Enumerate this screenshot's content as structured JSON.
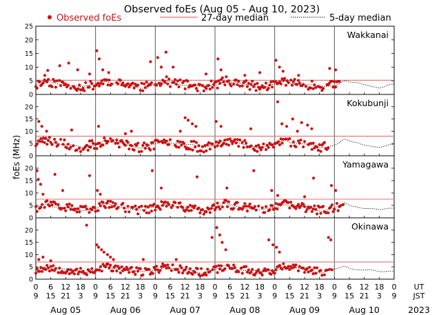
{
  "chart_data": {
    "type": "scatter",
    "title": "Observed foEs (Aug 05 - Aug 10, 2023)",
    "ylabel": "foEs (MHz)",
    "ylim": [
      0,
      25
    ],
    "yticks": [
      0,
      5,
      10,
      15,
      20,
      25
    ],
    "yticks_short": [
      0,
      5,
      10,
      15,
      20
    ],
    "xlim_days": [
      0,
      6
    ],
    "legend": {
      "observed": "Observed foEs",
      "median27": "27-day median",
      "median5": "5-day median"
    },
    "colors": {
      "observed": "#cc1111",
      "median27": "#e07070",
      "median5": "#000000",
      "daylines": "#555555"
    },
    "hour_ticks": [
      "0",
      "6",
      "12",
      "18",
      "0"
    ],
    "jst_ticks": [
      "9",
      "15",
      "21",
      "3",
      "9"
    ],
    "axis_labels": {
      "ut": "UT",
      "jst": "JST",
      "year": "2023"
    },
    "days": [
      "Aug 05",
      "Aug 06",
      "Aug 07",
      "Aug 08",
      "Aug 09",
      "Aug 10"
    ],
    "stations": [
      {
        "name": "Wakkanai",
        "median27": 5.2,
        "base": 3.5,
        "amp": 1.6,
        "noise": 1.6,
        "seed": 11,
        "data_end_day": 5.1,
        "spikes": [
          [
            0.2,
            8.8
          ],
          [
            0.4,
            10.5
          ],
          [
            0.55,
            11.5
          ],
          [
            0.7,
            9
          ],
          [
            0.9,
            7.5
          ],
          [
            1.02,
            16
          ],
          [
            1.06,
            13
          ],
          [
            1.12,
            9
          ],
          [
            1.22,
            8
          ],
          [
            2.04,
            13.5
          ],
          [
            2.1,
            10
          ],
          [
            2.18,
            15.5
          ],
          [
            2.3,
            10
          ],
          [
            1.92,
            12
          ],
          [
            2.85,
            7.5
          ],
          [
            3.05,
            13
          ],
          [
            3.1,
            9
          ],
          [
            3.5,
            7
          ],
          [
            4.02,
            12.5
          ],
          [
            4.08,
            10
          ],
          [
            4.14,
            8.5
          ],
          [
            4.4,
            7
          ],
          [
            4.92,
            9.5
          ],
          [
            5.02,
            9
          ],
          [
            3.75,
            8
          ],
          [
            0.15,
            7
          ]
        ]
      },
      {
        "name": "Kokubunji",
        "median27": 8,
        "base": 4.5,
        "amp": 2.2,
        "noise": 1.9,
        "seed": 23,
        "data_end_day": 4.92,
        "spikes": [
          [
            0.05,
            14
          ],
          [
            0.1,
            12
          ],
          [
            0.18,
            10
          ],
          [
            0.6,
            10.5
          ],
          [
            0.9,
            6
          ],
          [
            1.5,
            9
          ],
          [
            1.6,
            10
          ],
          [
            1.05,
            12
          ],
          [
            2.5,
            15.5
          ],
          [
            2.55,
            14.5
          ],
          [
            2.62,
            13
          ],
          [
            2.68,
            12
          ],
          [
            2.42,
            10
          ],
          [
            3.02,
            14
          ],
          [
            3.1,
            12
          ],
          [
            3.6,
            11
          ],
          [
            4.05,
            22
          ],
          [
            4.12,
            13
          ],
          [
            4.2,
            12
          ],
          [
            4.3,
            15
          ],
          [
            4.45,
            13.5
          ],
          [
            4.55,
            12.5
          ],
          [
            4.62,
            11
          ],
          [
            4.38,
            10
          ]
        ]
      },
      {
        "name": "Yamagawa",
        "median27": 7.5,
        "base": 4,
        "amp": 1.8,
        "noise": 1.7,
        "seed": 37,
        "data_end_day": 5.15,
        "spikes": [
          [
            0.02,
            19
          ],
          [
            0.04,
            15.5
          ],
          [
            0.08,
            13.5
          ],
          [
            0.12,
            9.5
          ],
          [
            0.32,
            17.5
          ],
          [
            0.45,
            11
          ],
          [
            0.9,
            17
          ],
          [
            1.03,
            11
          ],
          [
            1.08,
            9.5
          ],
          [
            1.95,
            19
          ],
          [
            2.1,
            12
          ],
          [
            2.7,
            16.5
          ],
          [
            3.2,
            12
          ],
          [
            3.65,
            19
          ],
          [
            3.95,
            11
          ],
          [
            4.05,
            9
          ],
          [
            4.65,
            16
          ],
          [
            4.5,
            8.5
          ],
          [
            4.95,
            13
          ],
          [
            5.02,
            11
          ]
        ]
      },
      {
        "name": "Okinawa",
        "median27": 7,
        "base": 3.7,
        "amp": 1.6,
        "noise": 1.6,
        "seed": 53,
        "data_end_day": 4.98,
        "spikes": [
          [
            0.05,
            8
          ],
          [
            0.12,
            9
          ],
          [
            0.25,
            7.5
          ],
          [
            0.85,
            22
          ],
          [
            1.02,
            14
          ],
          [
            1.05,
            13
          ],
          [
            1.1,
            12
          ],
          [
            1.14,
            11
          ],
          [
            1.2,
            10
          ],
          [
            1.25,
            9
          ],
          [
            1.3,
            8
          ],
          [
            3.03,
            21
          ],
          [
            3.08,
            18
          ],
          [
            3.12,
            15
          ],
          [
            3.18,
            12
          ],
          [
            2.95,
            17
          ],
          [
            3.9,
            16
          ],
          [
            3.97,
            14
          ],
          [
            4.03,
            13
          ],
          [
            4.08,
            11
          ],
          [
            4.9,
            17
          ],
          [
            4.94,
            16
          ],
          [
            2.35,
            8
          ],
          [
            1.8,
            8
          ]
        ]
      }
    ]
  }
}
